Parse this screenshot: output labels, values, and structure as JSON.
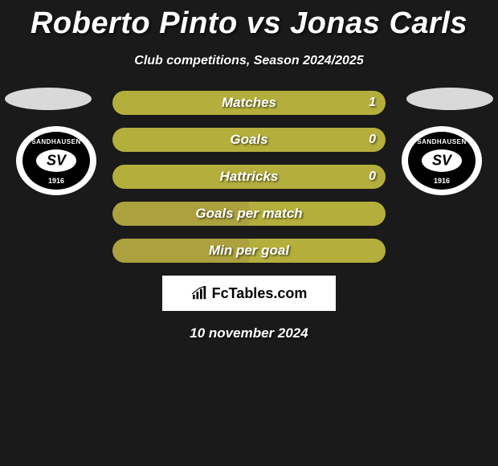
{
  "title": "Roberto Pinto vs Jonas Carls",
  "subtitle": "Club competitions, Season 2024/2025",
  "date": "10 november 2024",
  "branding_text": "FcTables.com",
  "colors": {
    "background": "#1a1a1a",
    "bar_left": "#aca13e",
    "bar_right": "#b4af3d",
    "head": "#d9d9d9",
    "white": "#ffffff",
    "black": "#000000"
  },
  "club": {
    "top_text": "SANDHAUSEN",
    "center_text": "SV",
    "bottom_text": "1916"
  },
  "stats": [
    {
      "label": "Matches",
      "left_val": "",
      "right_val": "1",
      "left_pct": 0,
      "right_pct": 100,
      "show_left": false,
      "show_right": true
    },
    {
      "label": "Goals",
      "left_val": "",
      "right_val": "0",
      "left_pct": 0,
      "right_pct": 100,
      "show_left": false,
      "show_right": true
    },
    {
      "label": "Hattricks",
      "left_val": "",
      "right_val": "0",
      "left_pct": 0,
      "right_pct": 100,
      "show_left": false,
      "show_right": true
    },
    {
      "label": "Goals per match",
      "left_val": "",
      "right_val": "",
      "left_pct": 50,
      "right_pct": 50,
      "show_left": false,
      "show_right": false
    },
    {
      "label": "Min per goal",
      "left_val": "",
      "right_val": "",
      "left_pct": 50,
      "right_pct": 50,
      "show_left": false,
      "show_right": false
    }
  ]
}
